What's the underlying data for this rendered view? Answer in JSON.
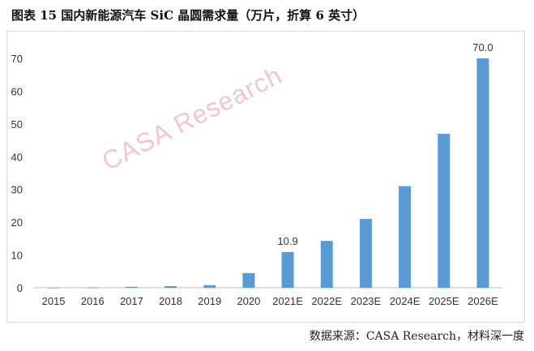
{
  "title": "图表 15 国内新能源汽车 SiC 晶圆需求量（万片，折算 6 英寸）",
  "watermark": "CASA Research",
  "source": "数据来源：CASA Research，材料深一度",
  "colors": {
    "bar": "#5b9bd5",
    "grid": "#d9d9d9",
    "axis": "#bfbfbf",
    "watermark": "#ec96a5"
  },
  "chart_data": {
    "type": "bar",
    "categories": [
      "2015",
      "2016",
      "2017",
      "2018",
      "2019",
      "2020",
      "2021E",
      "2022E",
      "2023E",
      "2024E",
      "2025E",
      "2026E"
    ],
    "values": [
      0.05,
      0.1,
      0.3,
      0.5,
      0.8,
      4.5,
      10.9,
      14.3,
      21.0,
      31.0,
      47.0,
      70.0
    ],
    "data_labels": [
      null,
      null,
      null,
      null,
      null,
      null,
      "10.9",
      null,
      null,
      null,
      null,
      "70.0"
    ],
    "ylim": [
      0,
      70
    ],
    "yticks": [
      0,
      10,
      20,
      30,
      40,
      50,
      60,
      70
    ],
    "grid": false,
    "legend": "none"
  }
}
